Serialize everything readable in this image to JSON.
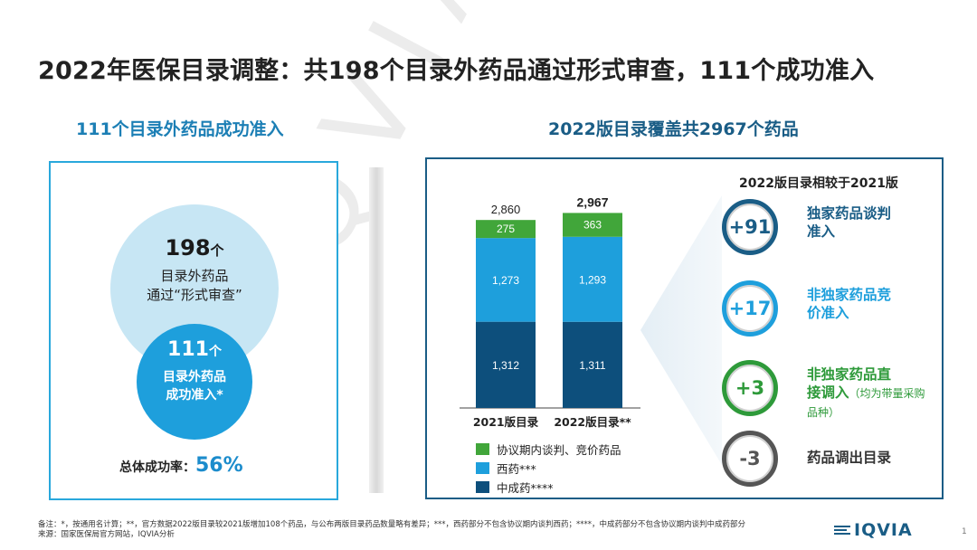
{
  "page_title": "2022年医保目录调整：共198个目录外药品通过形式审查，111个成功准入",
  "left": {
    "section_title": "111个目录外药品成功准入",
    "big_circle": {
      "number": "198",
      "unit": "个",
      "line1": "目录外药品",
      "line2": "通过“形式审查”"
    },
    "small_circle": {
      "number": "111",
      "unit": "个",
      "line1": "目录外药品",
      "line2": "成功准入*"
    },
    "rate_label": "总体成功率：",
    "rate_value": "56%"
  },
  "right": {
    "section_title": "2022版目录覆盖共2967个药品",
    "comparison_title": "2022版目录相较于2021版",
    "comparisons": [
      {
        "value": "+91",
        "line1": "独家药品谈判",
        "line2": "准入",
        "note": "",
        "color": "#1a5d86"
      },
      {
        "value": "+17",
        "line1": "非独家药品竞",
        "line2": "价准入",
        "note": "",
        "color": "#1e9fdc"
      },
      {
        "value": "+3",
        "line1": "非独家药品直",
        "line2": "接调入",
        "note": "（均为带量采购品种）",
        "color": "#2e9a3a"
      },
      {
        "value": "-3",
        "line1": "药品调出目录",
        "line2": "",
        "note": "",
        "color": "#555555"
      }
    ]
  },
  "chart_data": {
    "type": "bar",
    "stacked": true,
    "categories": [
      "2021版目录",
      "2022版目录**"
    ],
    "totals": [
      "2,860",
      "2,967"
    ],
    "series": [
      {
        "name": "中成药****",
        "values": [
          1312,
          1311
        ],
        "labels": [
          "1,312",
          "1,311"
        ],
        "color": "#0d4f7c"
      },
      {
        "name": "西药***",
        "values": [
          1273,
          1293
        ],
        "labels": [
          "1,273",
          "1,293"
        ],
        "color": "#1e9fdc"
      },
      {
        "name": "协议期内谈判、竞价药品",
        "values": [
          275,
          363
        ],
        "labels": [
          "275",
          "363"
        ],
        "color": "#41a63a"
      }
    ],
    "legend_order": [
      2,
      1,
      0
    ]
  },
  "footnotes": {
    "line1": "备注：*，按通用名计算；**，官方数据2022版目录较2021版增加108个药品，与公布两版目录药品数量略有差异；***，西药部分不包含协议期内谈判西药；****，中成药部分不包含协议期内谈判中成药部分",
    "line2": "来源：国家医保局官方网站，IQVIA分析"
  },
  "logo_text": "IQVIA",
  "watermark_text": "IQVIA",
  "page_number": "1"
}
